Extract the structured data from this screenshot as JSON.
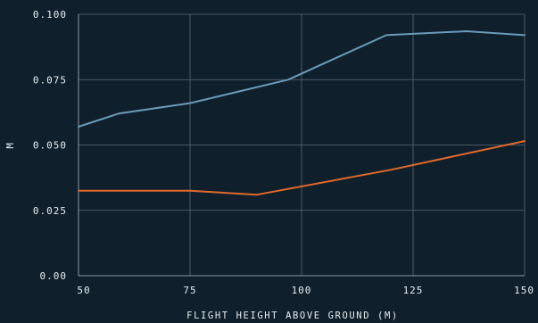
{
  "colors": {
    "background": "#0f1f2b",
    "text": "#e6edf2",
    "grid": "#5c6b76"
  },
  "chart_data": {
    "type": "line",
    "title": "",
    "xlabel": "FLIGHT HEIGHT ABOVE GROUND (M)",
    "ylabel": "M",
    "xlim": [
      50,
      150
    ],
    "ylim": [
      0,
      0.1
    ],
    "x_ticks": [
      50,
      75,
      100,
      125,
      150
    ],
    "x_tick_labels": [
      "50",
      "75",
      "100",
      "125",
      "150"
    ],
    "y_ticks": [
      0,
      0.025,
      0.05,
      0.075,
      0.1
    ],
    "y_tick_labels": [
      "0.00",
      "0.025",
      "0.050",
      "0.075",
      "0.100"
    ],
    "grid": true,
    "series": [
      {
        "color": "#6b9ab8",
        "x": [
          50,
          59,
          75,
          97,
          119,
          137,
          150
        ],
        "y": [
          0.057,
          0.062,
          0.066,
          0.075,
          0.092,
          0.0935,
          0.092
        ]
      },
      {
        "color": "#e06a2c",
        "x": [
          50,
          75,
          90,
          120,
          150
        ],
        "y": [
          0.0325,
          0.0325,
          0.031,
          0.0405,
          0.0515
        ]
      }
    ]
  }
}
